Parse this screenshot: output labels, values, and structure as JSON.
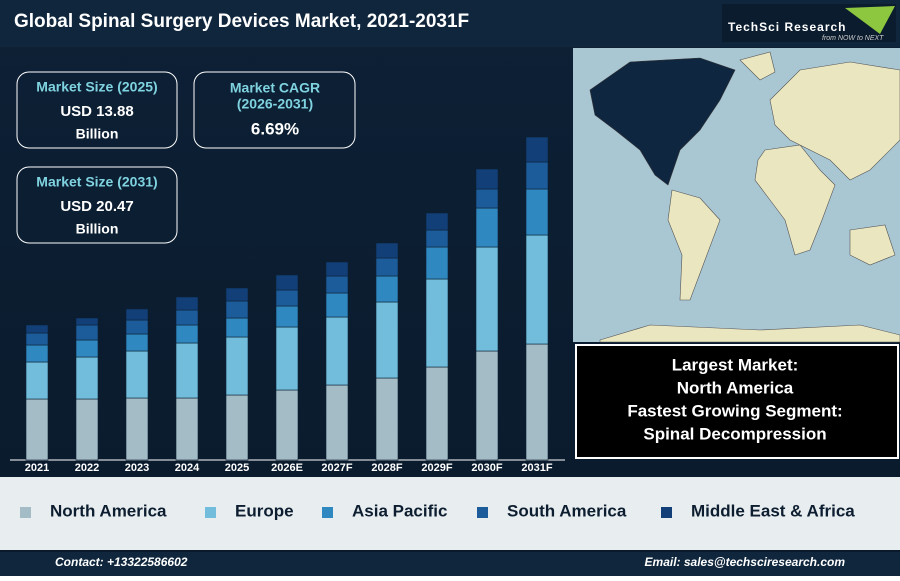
{
  "header": {
    "title": "Global Spinal Surgery Devices Market, 2021-2031F",
    "logo": "TechSci Research",
    "tagline": "from NOW to NEXT"
  },
  "kpis": [
    {
      "label": "Market Size (2025)",
      "value": "USD 13.88",
      "unit": "Billion"
    },
    {
      "label": "Market CAGR",
      "sublabel": "(2026-2031)",
      "value": "6.69%"
    },
    {
      "label": "Market Size (2031)",
      "value": "USD 20.47",
      "unit": "Billion"
    }
  ],
  "chart_data": {
    "type": "stacked-bar",
    "categories": [
      "2021",
      "2022",
      "2023",
      "2024",
      "2025",
      "2026E",
      "2027F",
      "2028F",
      "2029F",
      "2030F",
      "2031F"
    ],
    "series": [
      {
        "name": "North America",
        "color": "#a3bcc6",
        "values": [
          61,
          61,
          62,
          62,
          65,
          70,
          75,
          82,
          93,
          109,
          116
        ]
      },
      {
        "name": "Europe",
        "color": "#72bddc",
        "values": [
          37,
          42,
          47,
          55,
          58,
          63,
          68,
          76,
          88,
          104,
          109
        ]
      },
      {
        "name": "Asia Pacific",
        "color": "#2f88bf",
        "values": [
          17,
          17,
          17,
          18,
          19,
          21,
          24,
          26,
          32,
          39,
          46
        ]
      },
      {
        "name": "South America",
        "color": "#1c5c9a",
        "values": [
          12,
          15,
          14,
          15,
          17,
          16,
          17,
          18,
          17,
          19,
          27
        ]
      },
      {
        "name": "Middle East & Africa",
        "color": "#123f78",
        "values": [
          8,
          7,
          11,
          13,
          13,
          15,
          14,
          15,
          17,
          20,
          25
        ]
      }
    ],
    "ylim": [
      0,
      340
    ]
  },
  "info": {
    "lines": [
      "Largest Market:",
      "North America",
      "Fastest Growing Segment:",
      "Spinal Decompression"
    ]
  },
  "footer": {
    "contact": "Contact: +13322586602",
    "email": "Email: sales@techsciresearch.com"
  }
}
